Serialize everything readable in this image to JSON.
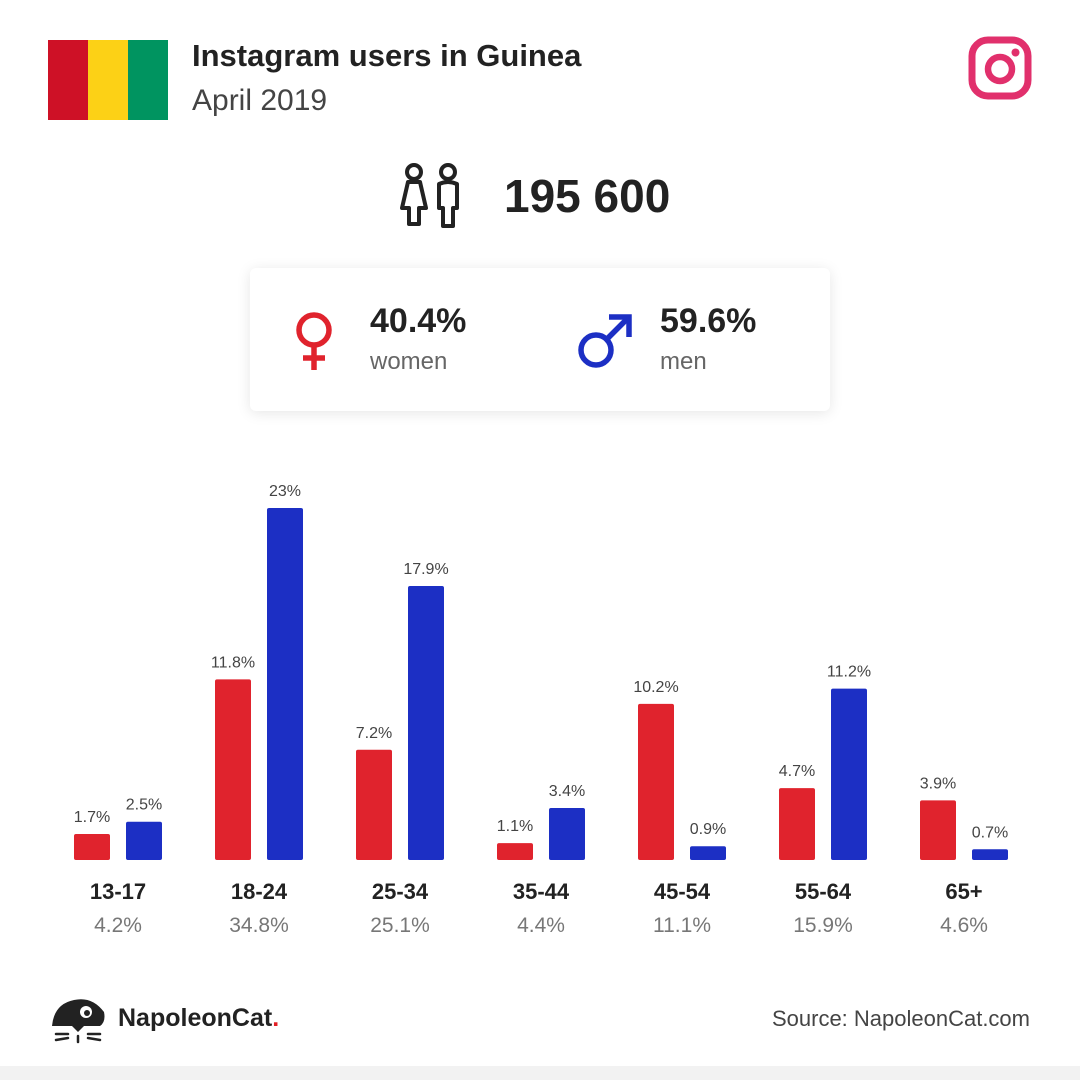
{
  "header": {
    "title": "Instagram users in Guinea",
    "subtitle": "April 2019",
    "flag_colors": [
      "#ce1126",
      "#fcd116",
      "#009460"
    ],
    "logo_icon": "instagram-icon"
  },
  "total": {
    "value": "195 600",
    "icon": "people-icon"
  },
  "gender": {
    "women": {
      "pct": "40.4%",
      "label": "women",
      "icon": "female-symbol-icon",
      "color": "#e0232d"
    },
    "men": {
      "pct": "59.6%",
      "label": "men",
      "icon": "male-symbol-icon",
      "color": "#1c2fc4"
    }
  },
  "chart_data": {
    "type": "bar",
    "categories": [
      "13-17",
      "18-24",
      "25-34",
      "35-44",
      "45-54",
      "55-64",
      "65+"
    ],
    "category_totals": [
      "4.2%",
      "34.8%",
      "25.1%",
      "4.4%",
      "11.1%",
      "15.9%",
      "4.6%"
    ],
    "series": [
      {
        "key": "women",
        "color": "#e0232d",
        "values": [
          1.7,
          11.8,
          7.2,
          1.1,
          10.2,
          4.7,
          3.9
        ],
        "labels": [
          "1.7%",
          "11.8%",
          "7.2%",
          "1.1%",
          "10.2%",
          "4.7%",
          "3.9%"
        ]
      },
      {
        "key": "men",
        "color": "#1c2fc4",
        "values": [
          2.5,
          23,
          17.9,
          3.4,
          0.9,
          11.2,
          0.7
        ],
        "labels": [
          "2.5%",
          "23%",
          "17.9%",
          "3.4%",
          "0.9%",
          "11.2%",
          "0.7%"
        ]
      }
    ],
    "ylim": [
      0,
      23
    ]
  },
  "footer": {
    "brand_name": "NapoleonCat",
    "brand_dot": ".",
    "source": "Source: NapoleonCat.com",
    "brand_icon": "napoleoncat-logo-icon"
  }
}
